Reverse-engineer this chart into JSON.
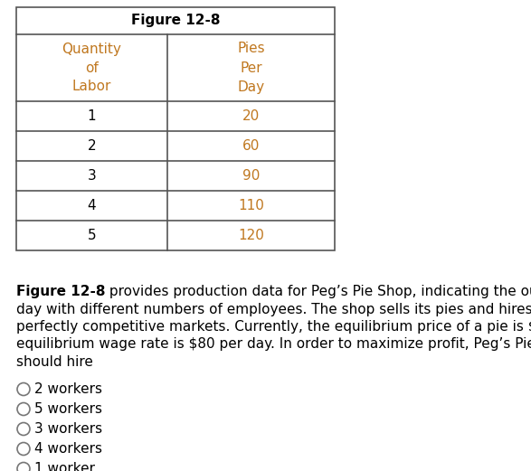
{
  "title": "Figure 12-8",
  "col1_header": [
    "Quantity",
    "of",
    "Labor"
  ],
  "col2_header": [
    "Pies",
    "Per",
    "Day"
  ],
  "col1_data": [
    "1",
    "2",
    "3",
    "4",
    "5"
  ],
  "col2_data": [
    "20",
    "60",
    "90",
    "110",
    "120"
  ],
  "header_color": "#000000",
  "data_color": "#c07820",
  "body_bold": "Figure 12-8",
  "body_normal": " provides production data for Peg’s Pie Shop, indicating the output per\nday with different numbers of employees. The shop sells its pies and hires its labor in\nperfectly competitive markets. Currently, the equilibrium price of a pie is $5, and the\nequilibrium wage rate is $80 per day. In order to maximize profit, Peg’s Pie Shop\nshould hire",
  "options": [
    "2 workers",
    "5 workers",
    "3 workers",
    "4 workers",
    "1 worker"
  ],
  "bg_color": "#ffffff",
  "border_color": "#555555",
  "lw": 1.2
}
